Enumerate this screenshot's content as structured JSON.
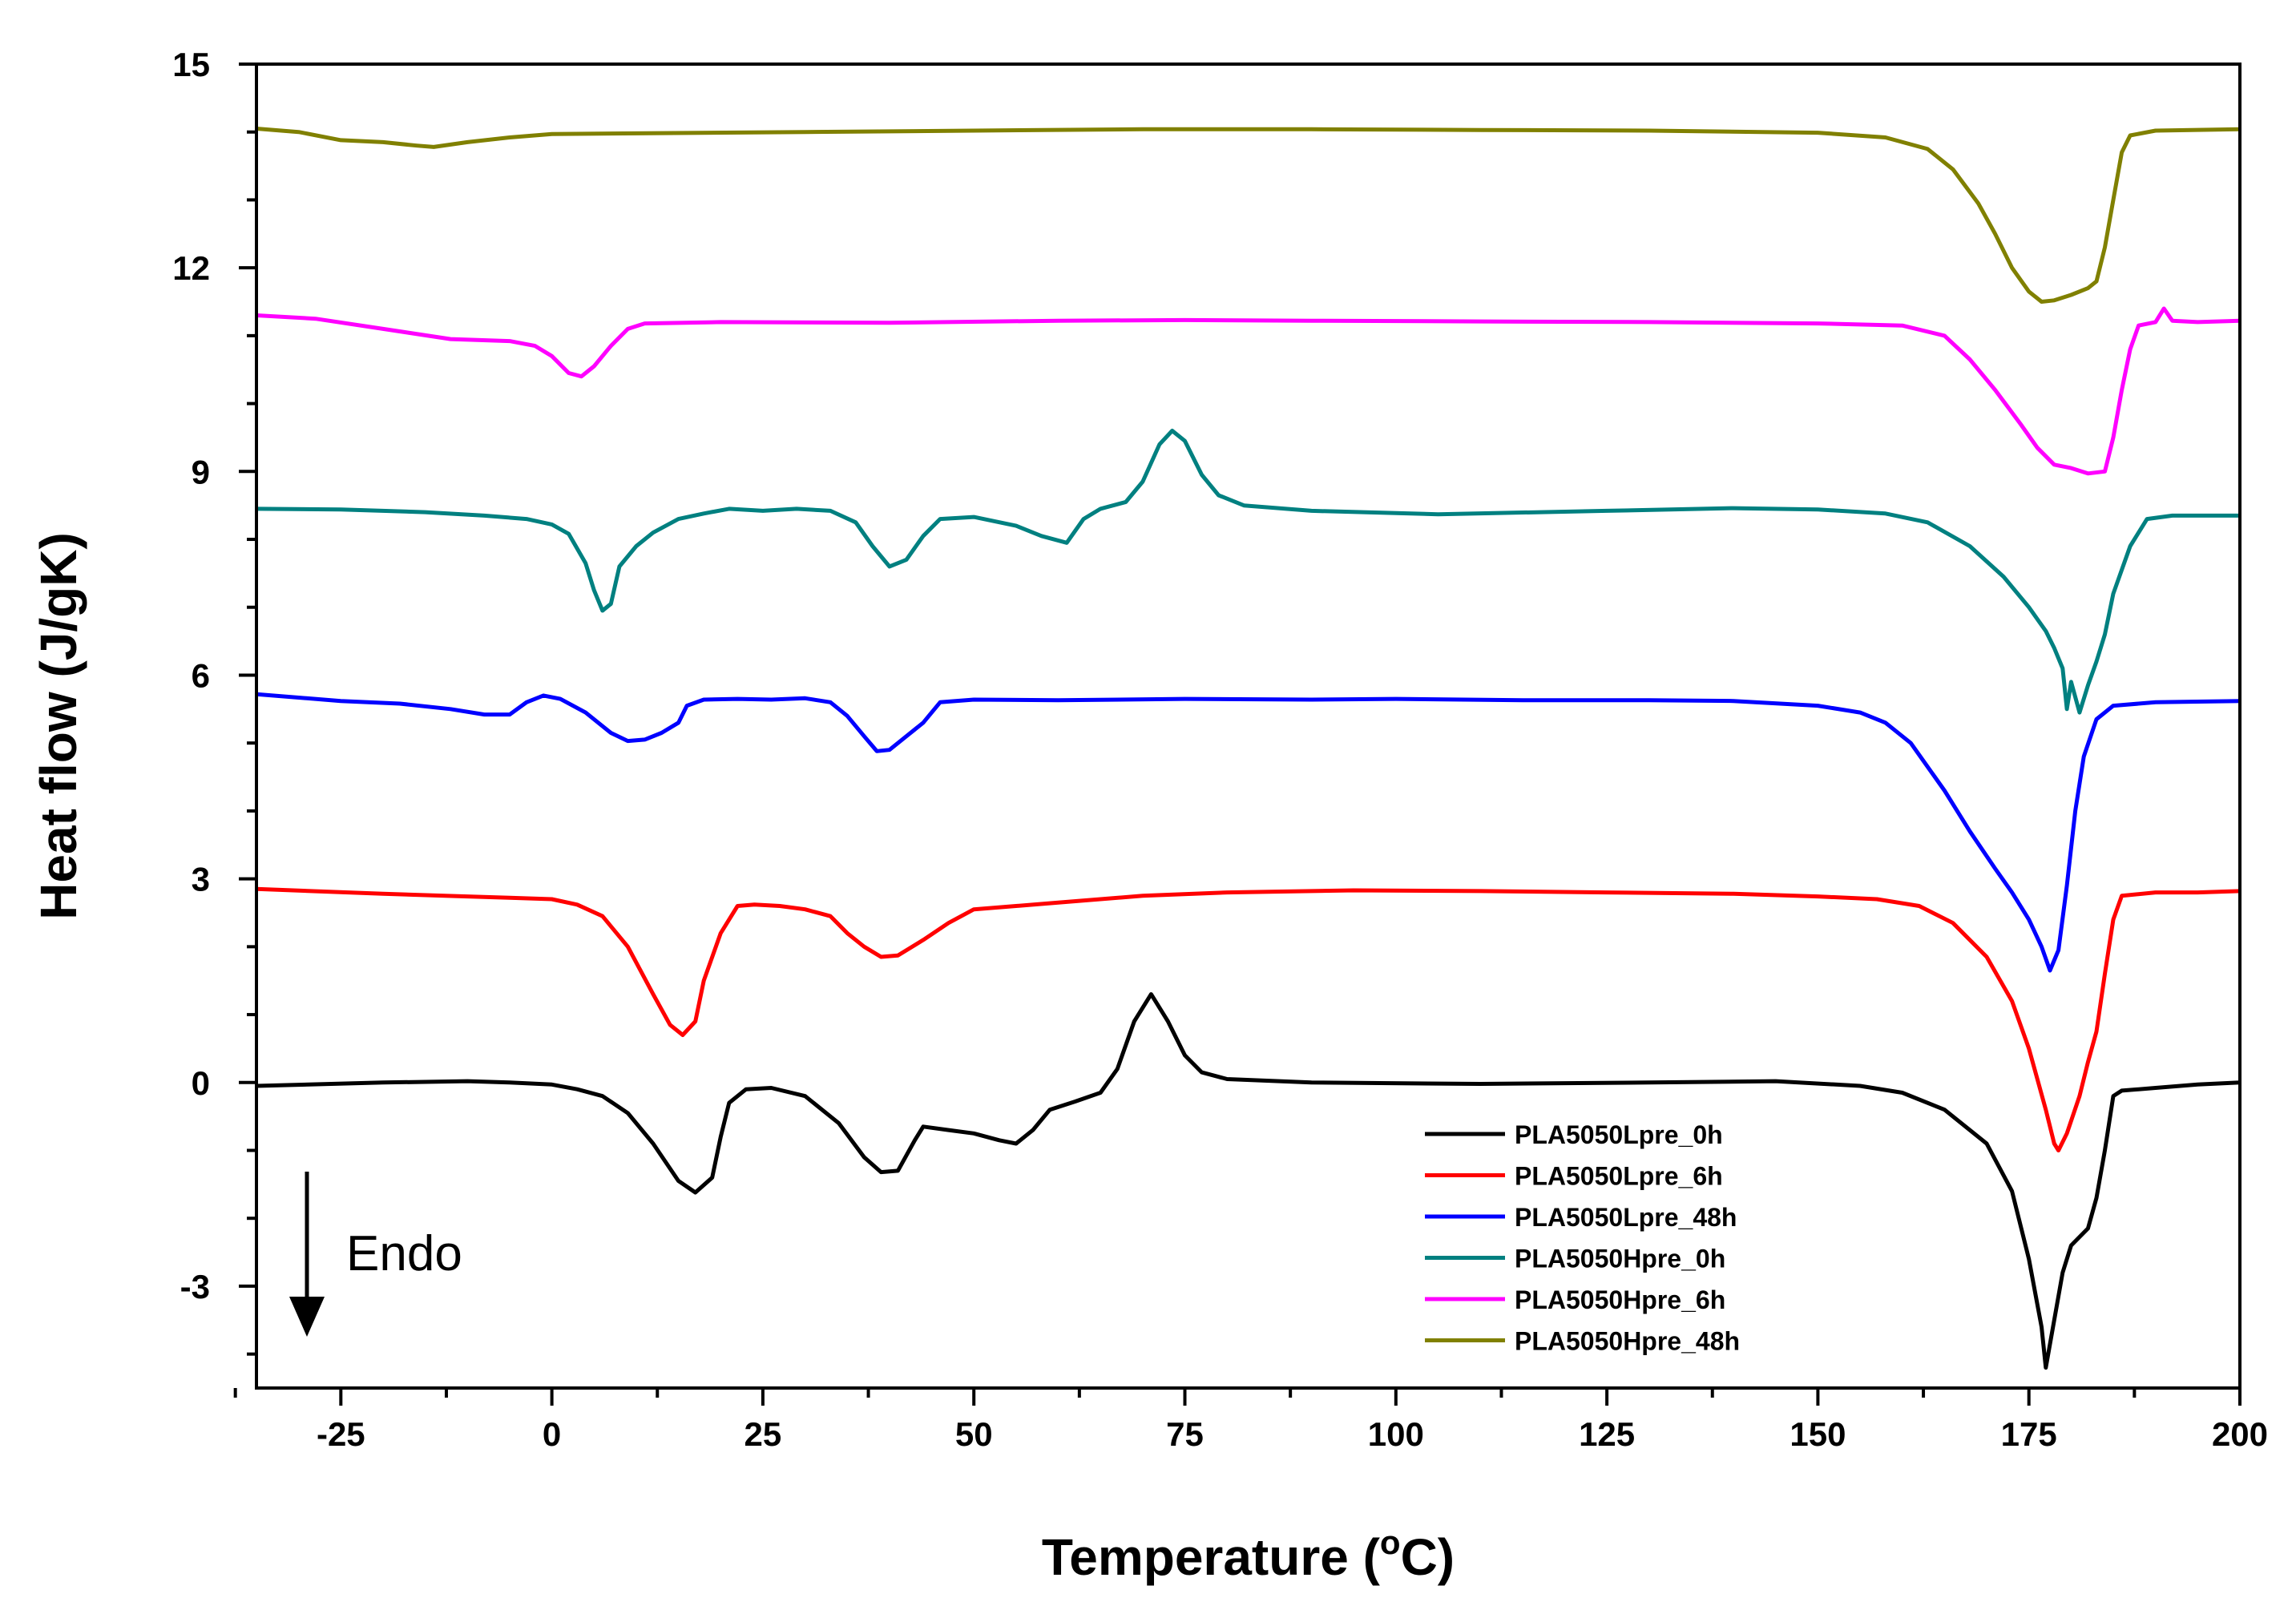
{
  "chart_data": {
    "type": "line",
    "xlabel_main": "Temperature (",
    "xlabel_sup": "o",
    "xlabel_end": "C)",
    "ylabel": "Heat flow (J/gK)",
    "xlim": [
      -35,
      200
    ],
    "ylim": [
      -4.5,
      15
    ],
    "xticks": [
      -25,
      0,
      25,
      50,
      75,
      100,
      125,
      150,
      175,
      200
    ],
    "yticks": [
      -3,
      0,
      3,
      6,
      9,
      12,
      15
    ],
    "grid": false,
    "legend_position": "bottom-right",
    "annotation": {
      "text": "Endo",
      "arrow": "down"
    },
    "series": [
      {
        "name": "PLA5050Lpre_0h",
        "color": "#000000",
        "points": [
          [
            -35,
            -0.05
          ],
          [
            -20,
            0.0
          ],
          [
            -10,
            0.02
          ],
          [
            -5,
            0.0
          ],
          [
            0,
            -0.03
          ],
          [
            3,
            -0.1
          ],
          [
            6,
            -0.2
          ],
          [
            9,
            -0.45
          ],
          [
            12,
            -0.9
          ],
          [
            15,
            -1.45
          ],
          [
            17,
            -1.62
          ],
          [
            19,
            -1.4
          ],
          [
            20,
            -0.8
          ],
          [
            21,
            -0.3
          ],
          [
            23,
            -0.1
          ],
          [
            26,
            -0.08
          ],
          [
            30,
            -0.2
          ],
          [
            34,
            -0.6
          ],
          [
            37,
            -1.1
          ],
          [
            39,
            -1.32
          ],
          [
            41,
            -1.3
          ],
          [
            43,
            -0.85
          ],
          [
            44,
            -0.65
          ],
          [
            47,
            -0.7
          ],
          [
            50,
            -0.75
          ],
          [
            53,
            -0.85
          ],
          [
            55,
            -0.9
          ],
          [
            57,
            -0.7
          ],
          [
            59,
            -0.4
          ],
          [
            62,
            -0.28
          ],
          [
            65,
            -0.15
          ],
          [
            67,
            0.2
          ],
          [
            69,
            0.9
          ],
          [
            71,
            1.3
          ],
          [
            73,
            0.9
          ],
          [
            75,
            0.4
          ],
          [
            77,
            0.15
          ],
          [
            80,
            0.05
          ],
          [
            90,
            0.0
          ],
          [
            110,
            -0.02
          ],
          [
            130,
            0.0
          ],
          [
            145,
            0.02
          ],
          [
            155,
            -0.05
          ],
          [
            160,
            -0.15
          ],
          [
            165,
            -0.4
          ],
          [
            170,
            -0.9
          ],
          [
            173,
            -1.6
          ],
          [
            175,
            -2.6
          ],
          [
            176.5,
            -3.6
          ],
          [
            177,
            -4.2
          ],
          [
            178,
            -3.5
          ],
          [
            179,
            -2.8
          ],
          [
            180,
            -2.4
          ],
          [
            182,
            -2.15
          ],
          [
            183,
            -1.7
          ],
          [
            184,
            -1.0
          ],
          [
            185,
            -0.2
          ],
          [
            186,
            -0.12
          ],
          [
            190,
            -0.08
          ],
          [
            195,
            -0.03
          ],
          [
            200,
            0.0
          ]
        ]
      },
      {
        "name": "PLA5050Lpre_6h",
        "color": "#ff0000",
        "points": [
          [
            -35,
            2.85
          ],
          [
            -20,
            2.78
          ],
          [
            -10,
            2.74
          ],
          [
            -5,
            2.72
          ],
          [
            0,
            2.7
          ],
          [
            3,
            2.62
          ],
          [
            6,
            2.45
          ],
          [
            9,
            2.0
          ],
          [
            12,
            1.3
          ],
          [
            14,
            0.85
          ],
          [
            15.5,
            0.7
          ],
          [
            17,
            0.9
          ],
          [
            18,
            1.5
          ],
          [
            20,
            2.2
          ],
          [
            22,
            2.6
          ],
          [
            24,
            2.62
          ],
          [
            27,
            2.6
          ],
          [
            30,
            2.55
          ],
          [
            33,
            2.45
          ],
          [
            35,
            2.2
          ],
          [
            37,
            2.0
          ],
          [
            39,
            1.85
          ],
          [
            41,
            1.87
          ],
          [
            44,
            2.1
          ],
          [
            47,
            2.35
          ],
          [
            50,
            2.55
          ],
          [
            55,
            2.6
          ],
          [
            60,
            2.65
          ],
          [
            70,
            2.75
          ],
          [
            80,
            2.8
          ],
          [
            95,
            2.83
          ],
          [
            110,
            2.82
          ],
          [
            125,
            2.8
          ],
          [
            140,
            2.78
          ],
          [
            150,
            2.74
          ],
          [
            157,
            2.7
          ],
          [
            162,
            2.6
          ],
          [
            166,
            2.35
          ],
          [
            170,
            1.85
          ],
          [
            173,
            1.2
          ],
          [
            175,
            0.5
          ],
          [
            177,
            -0.4
          ],
          [
            178,
            -0.9
          ],
          [
            178.5,
            -1.0
          ],
          [
            179.5,
            -0.75
          ],
          [
            181,
            -0.2
          ],
          [
            182,
            0.3
          ],
          [
            183,
            0.75
          ],
          [
            184,
            1.6
          ],
          [
            185,
            2.4
          ],
          [
            186,
            2.75
          ],
          [
            190,
            2.8
          ],
          [
            195,
            2.8
          ],
          [
            200,
            2.82
          ]
        ]
      },
      {
        "name": "PLA5050Lpre_48h",
        "color": "#0000ff",
        "points": [
          [
            -35,
            5.72
          ],
          [
            -25,
            5.62
          ],
          [
            -18,
            5.58
          ],
          [
            -12,
            5.5
          ],
          [
            -8,
            5.42
          ],
          [
            -5,
            5.42
          ],
          [
            -3,
            5.6
          ],
          [
            -1,
            5.7
          ],
          [
            1,
            5.65
          ],
          [
            4,
            5.45
          ],
          [
            7,
            5.15
          ],
          [
            9,
            5.03
          ],
          [
            11,
            5.05
          ],
          [
            13,
            5.15
          ],
          [
            15,
            5.3
          ],
          [
            16,
            5.55
          ],
          [
            18,
            5.64
          ],
          [
            22,
            5.65
          ],
          [
            26,
            5.64
          ],
          [
            30,
            5.66
          ],
          [
            33,
            5.6
          ],
          [
            35,
            5.4
          ],
          [
            37,
            5.1
          ],
          [
            38.5,
            4.88
          ],
          [
            40,
            4.9
          ],
          [
            42,
            5.1
          ],
          [
            44,
            5.3
          ],
          [
            46,
            5.6
          ],
          [
            50,
            5.64
          ],
          [
            60,
            5.63
          ],
          [
            75,
            5.65
          ],
          [
            90,
            5.64
          ],
          [
            100,
            5.65
          ],
          [
            115,
            5.63
          ],
          [
            130,
            5.63
          ],
          [
            140,
            5.62
          ],
          [
            150,
            5.55
          ],
          [
            155,
            5.45
          ],
          [
            158,
            5.3
          ],
          [
            161,
            5.0
          ],
          [
            165,
            4.3
          ],
          [
            168,
            3.7
          ],
          [
            171,
            3.15
          ],
          [
            173,
            2.8
          ],
          [
            175,
            2.4
          ],
          [
            176.5,
            2.0
          ],
          [
            177.5,
            1.65
          ],
          [
            178.5,
            1.95
          ],
          [
            179.5,
            2.9
          ],
          [
            180.5,
            4.0
          ],
          [
            181.5,
            4.8
          ],
          [
            183,
            5.35
          ],
          [
            185,
            5.55
          ],
          [
            190,
            5.6
          ],
          [
            200,
            5.62
          ]
        ]
      },
      {
        "name": "PLA5050Hpre_0h",
        "color": "#008080",
        "points": [
          [
            -35,
            8.45
          ],
          [
            -25,
            8.44
          ],
          [
            -15,
            8.4
          ],
          [
            -8,
            8.35
          ],
          [
            -3,
            8.3
          ],
          [
            0,
            8.22
          ],
          [
            2,
            8.08
          ],
          [
            4,
            7.65
          ],
          [
            5,
            7.25
          ],
          [
            6,
            6.95
          ],
          [
            7,
            7.05
          ],
          [
            8,
            7.6
          ],
          [
            10,
            7.9
          ],
          [
            12,
            8.1
          ],
          [
            15,
            8.3
          ],
          [
            18,
            8.38
          ],
          [
            21,
            8.45
          ],
          [
            25,
            8.42
          ],
          [
            29,
            8.45
          ],
          [
            33,
            8.42
          ],
          [
            36,
            8.25
          ],
          [
            38,
            7.9
          ],
          [
            40,
            7.6
          ],
          [
            42,
            7.7
          ],
          [
            44,
            8.05
          ],
          [
            46,
            8.3
          ],
          [
            50,
            8.33
          ],
          [
            55,
            8.2
          ],
          [
            58,
            8.05
          ],
          [
            61,
            7.95
          ],
          [
            63,
            8.3
          ],
          [
            65,
            8.45
          ],
          [
            68,
            8.55
          ],
          [
            70,
            8.85
          ],
          [
            72,
            9.4
          ],
          [
            73.5,
            9.6
          ],
          [
            75,
            9.45
          ],
          [
            77,
            8.95
          ],
          [
            79,
            8.65
          ],
          [
            82,
            8.5
          ],
          [
            90,
            8.42
          ],
          [
            105,
            8.37
          ],
          [
            125,
            8.42
          ],
          [
            140,
            8.46
          ],
          [
            150,
            8.44
          ],
          [
            158,
            8.38
          ],
          [
            163,
            8.25
          ],
          [
            168,
            7.9
          ],
          [
            172,
            7.45
          ],
          [
            175,
            7.0
          ],
          [
            177,
            6.65
          ],
          [
            178,
            6.4
          ],
          [
            179,
            6.1
          ],
          [
            179.5,
            5.5
          ],
          [
            180,
            5.9
          ],
          [
            181,
            5.45
          ],
          [
            182,
            5.85
          ],
          [
            183,
            6.2
          ],
          [
            184,
            6.6
          ],
          [
            185,
            7.2
          ],
          [
            187,
            7.9
          ],
          [
            189,
            8.3
          ],
          [
            192,
            8.35
          ],
          [
            200,
            8.35
          ]
        ]
      },
      {
        "name": "PLA5050Hpre_6h",
        "color": "#ff00ff",
        "points": [
          [
            -35,
            11.3
          ],
          [
            -28,
            11.25
          ],
          [
            -20,
            11.1
          ],
          [
            -12,
            10.95
          ],
          [
            -5,
            10.92
          ],
          [
            -2,
            10.85
          ],
          [
            0,
            10.7
          ],
          [
            2,
            10.45
          ],
          [
            3.5,
            10.4
          ],
          [
            5,
            10.55
          ],
          [
            7,
            10.85
          ],
          [
            9,
            11.1
          ],
          [
            11,
            11.18
          ],
          [
            20,
            11.2
          ],
          [
            40,
            11.19
          ],
          [
            60,
            11.22
          ],
          [
            75,
            11.23
          ],
          [
            90,
            11.22
          ],
          [
            110,
            11.21
          ],
          [
            130,
            11.2
          ],
          [
            150,
            11.18
          ],
          [
            160,
            11.15
          ],
          [
            165,
            11.0
          ],
          [
            168,
            10.65
          ],
          [
            171,
            10.2
          ],
          [
            174,
            9.7
          ],
          [
            176,
            9.35
          ],
          [
            178,
            9.1
          ],
          [
            180,
            9.05
          ],
          [
            182,
            8.97
          ],
          [
            184,
            9.0
          ],
          [
            185,
            9.5
          ],
          [
            186,
            10.2
          ],
          [
            187,
            10.8
          ],
          [
            188,
            11.15
          ],
          [
            190,
            11.2
          ],
          [
            191,
            11.4
          ],
          [
            192,
            11.22
          ],
          [
            195,
            11.2
          ],
          [
            200,
            11.22
          ]
        ]
      },
      {
        "name": "PLA5050Hpre_48h",
        "color": "#808000",
        "points": [
          [
            -35,
            14.05
          ],
          [
            -30,
            14.0
          ],
          [
            -25,
            13.88
          ],
          [
            -20,
            13.85
          ],
          [
            -16,
            13.8
          ],
          [
            -14,
            13.78
          ],
          [
            -10,
            13.85
          ],
          [
            -5,
            13.92
          ],
          [
            0,
            13.97
          ],
          [
            10,
            13.98
          ],
          [
            30,
            14.0
          ],
          [
            50,
            14.02
          ],
          [
            70,
            14.04
          ],
          [
            90,
            14.04
          ],
          [
            110,
            14.03
          ],
          [
            130,
            14.02
          ],
          [
            150,
            13.99
          ],
          [
            158,
            13.92
          ],
          [
            163,
            13.75
          ],
          [
            166,
            13.45
          ],
          [
            169,
            12.95
          ],
          [
            171,
            12.5
          ],
          [
            173,
            12.0
          ],
          [
            175,
            11.65
          ],
          [
            176.5,
            11.5
          ],
          [
            178,
            11.52
          ],
          [
            180,
            11.6
          ],
          [
            182,
            11.7
          ],
          [
            183,
            11.8
          ],
          [
            184,
            12.3
          ],
          [
            185,
            13.0
          ],
          [
            186,
            13.7
          ],
          [
            187,
            13.95
          ],
          [
            190,
            14.02
          ],
          [
            200,
            14.04
          ]
        ]
      }
    ]
  }
}
